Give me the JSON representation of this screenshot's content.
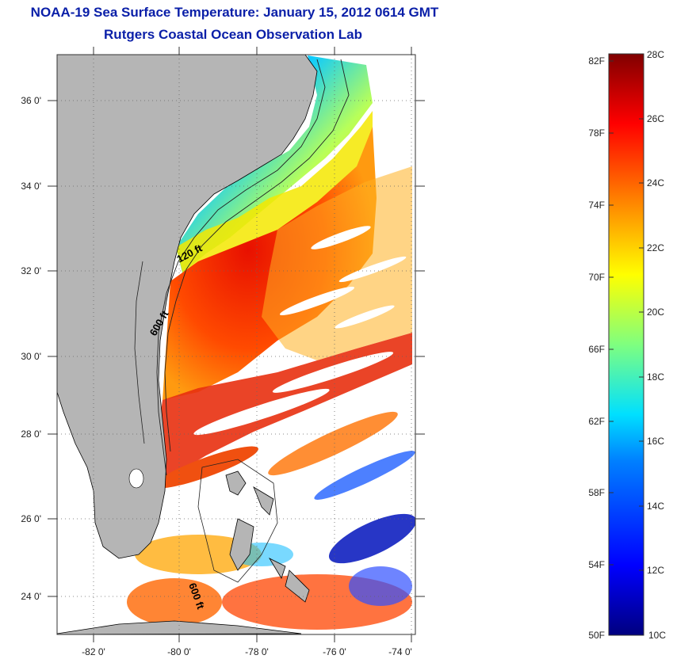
{
  "header": {
    "title": "NOAA-19 Sea Surface Temperature:  January 15, 2012 0614 GMT",
    "subtitle": "Rutgers Coastal Ocean Observation Lab"
  },
  "map": {
    "lat_ticks": [
      "36 0'",
      "34 0'",
      "32 0'",
      "30 0'",
      "28 0'",
      "26 0'",
      "24 0'"
    ],
    "lon_ticks": [
      "-82 0'",
      "-80 0'",
      "-78 0'",
      "-76 0'",
      "-74 0'"
    ],
    "contour_labels": [
      "120 ft",
      "600 ft",
      "600 ft"
    ],
    "colors": {
      "land": "#b5b5b5",
      "ocean_nodata": "#ffffff"
    }
  },
  "colorbar": {
    "fahrenheit": [
      "82F",
      "78F",
      "74F",
      "70F",
      "66F",
      "62F",
      "58F",
      "54F",
      "50F"
    ],
    "celsius": [
      "28C",
      "26C",
      "24C",
      "22C",
      "20C",
      "18C",
      "16C",
      "14C",
      "12C",
      "10C"
    ],
    "range_c": [
      10,
      28
    ],
    "colormap": "jet"
  }
}
